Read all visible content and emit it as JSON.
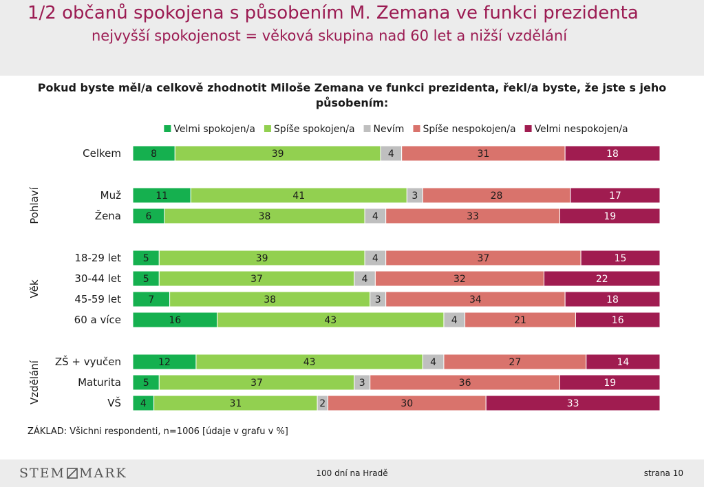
{
  "header": {
    "title": "1/2 občanů spokojena s působením M. Zemana ve funkci prezidenta",
    "subtitle": "nejvyšší spokojenost = věková skupina nad 60 let a nižší vzdělání"
  },
  "question": "Pokud byste měl/a celkově zhodnotit Miloše Zemana ve funkci prezidenta, řekl/a byste, že jste s jeho působením:",
  "base_note": "ZÁKLAD: Všichni respondenti, n=1006 [údaje v grafu v %]",
  "footer": {
    "logo_left": "STEM",
    "logo_right": "MARK",
    "center": "100 dní na Hradě",
    "page": "strana 10"
  },
  "colors": {
    "header_bg": "#ececec",
    "title": "#9b1b52",
    "velmi_spokojen": "#15b04f",
    "spise_spokojen": "#92d050",
    "nevim": "#bfbfbf",
    "spise_nespokojen": "#d9736c",
    "velmi_nespokojen": "#a01c50"
  },
  "chart_data": {
    "type": "bar",
    "orientation": "horizontal",
    "stacked": true,
    "unit": "%",
    "xlim": [
      0,
      100
    ],
    "legend_position": "top",
    "series": [
      {
        "name": "Velmi spokojen/a",
        "color": "#15b04f"
      },
      {
        "name": "Spíše spokojen/a",
        "color": "#92d050"
      },
      {
        "name": "Nevím",
        "color": "#bfbfbf"
      },
      {
        "name": "Spíše nespokojen/a",
        "color": "#d9736c"
      },
      {
        "name": "Velmi nespokojen/a",
        "color": "#a01c50"
      }
    ],
    "groups": [
      {
        "label": "",
        "rows": [
          {
            "label": "Celkem",
            "values": [
              8,
              39,
              4,
              31,
              18
            ]
          }
        ]
      },
      {
        "label": "Pohlaví",
        "rows": [
          {
            "label": "Muž",
            "values": [
              11,
              41,
              3,
              28,
              17
            ]
          },
          {
            "label": "Žena",
            "values": [
              6,
              38,
              4,
              33,
              19
            ]
          }
        ]
      },
      {
        "label": "Věk",
        "rows": [
          {
            "label": "18-29 let",
            "values": [
              5,
              39,
              4,
              37,
              15
            ]
          },
          {
            "label": "30-44 let",
            "values": [
              5,
              37,
              4,
              32,
              22
            ]
          },
          {
            "label": "45-59 let",
            "values": [
              7,
              38,
              3,
              34,
              18
            ]
          },
          {
            "label": "60 a více",
            "values": [
              16,
              43,
              4,
              21,
              16
            ]
          }
        ]
      },
      {
        "label": "Vzdělání",
        "rows": [
          {
            "label": "ZŠ + vyučen",
            "values": [
              12,
              43,
              4,
              27,
              14
            ]
          },
          {
            "label": "Maturita",
            "values": [
              5,
              37,
              3,
              36,
              19
            ]
          },
          {
            "label": "VŠ",
            "values": [
              4,
              31,
              2,
              30,
              33
            ]
          }
        ]
      }
    ]
  }
}
